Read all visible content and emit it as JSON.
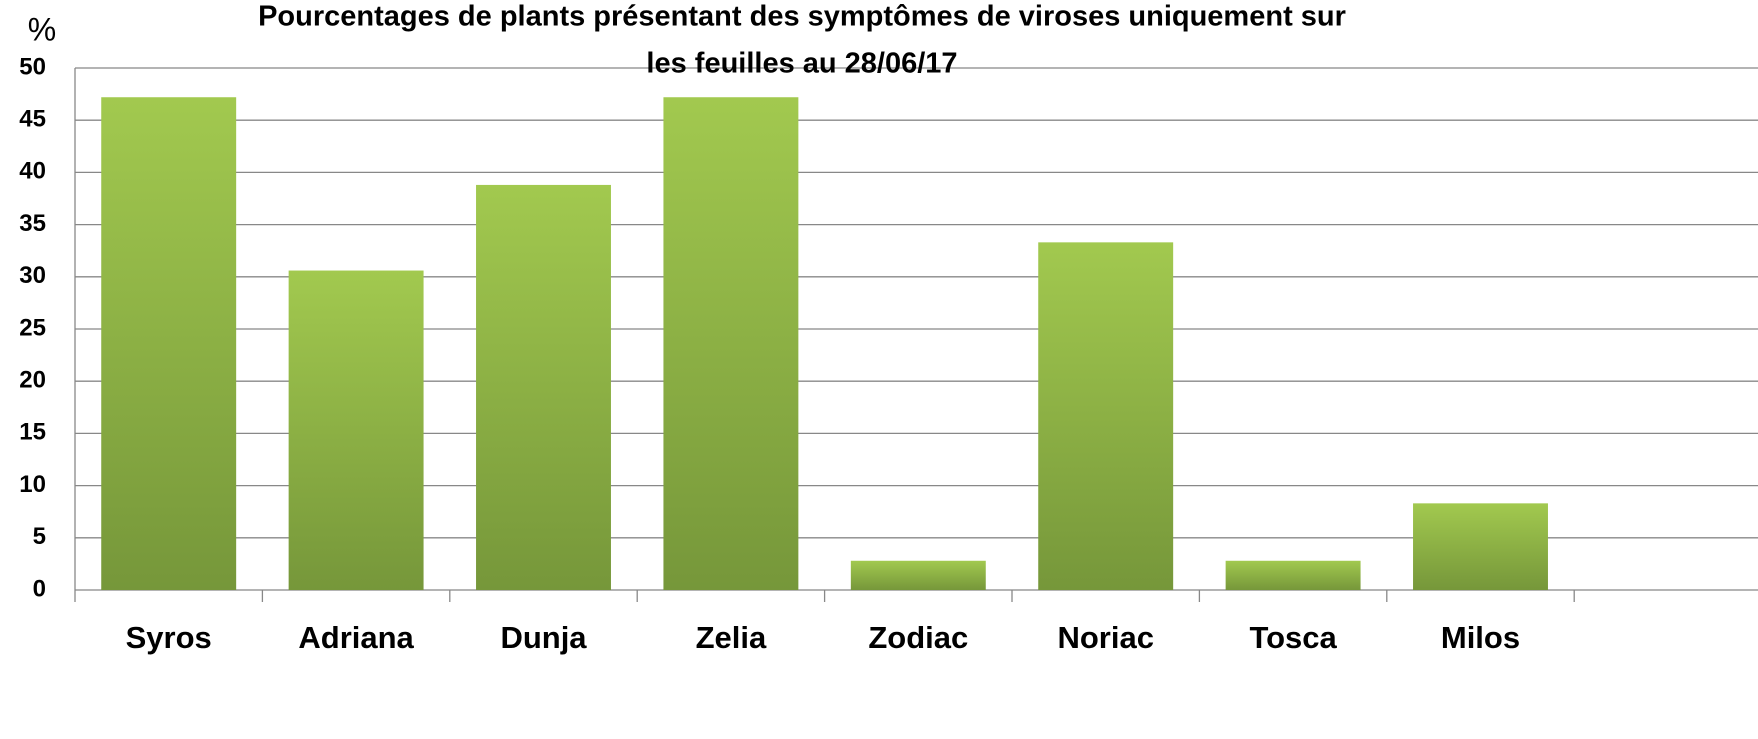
{
  "chart_data": {
    "type": "bar",
    "title": [
      "Pourcentages de plants présentant des symptômes de viroses uniquement sur",
      "les feuilles au 28/06/17"
    ],
    "y_label": "%",
    "categories": [
      "Syros",
      "Adriana",
      "Dunja",
      "Zelia",
      "Zodiac",
      "Noriac",
      "Tosca",
      "Milos"
    ],
    "values": [
      47.2,
      30.6,
      38.8,
      47.2,
      2.8,
      33.3,
      2.8,
      8.3
    ],
    "color": [
      "#a2c94f",
      "#76973a"
    ],
    "ylim": [
      0,
      50
    ],
    "yticks": [
      0,
      5,
      10,
      15,
      20,
      25,
      30,
      35,
      40,
      45,
      50
    ],
    "grid": true
  }
}
